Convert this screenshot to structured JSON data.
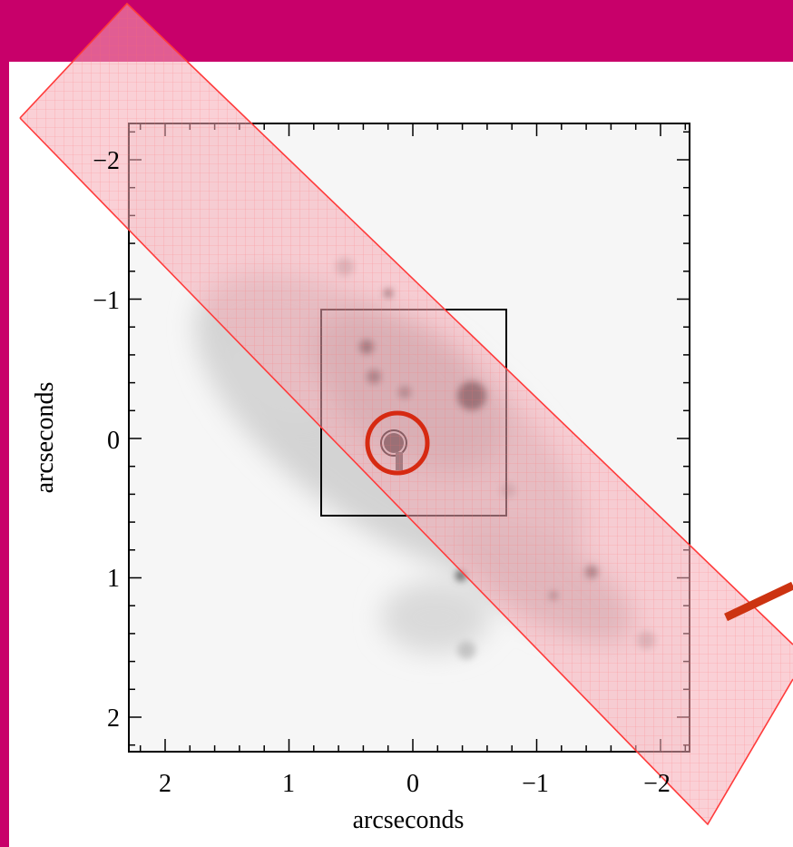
{
  "figure": {
    "x_axis": {
      "label": "arcseconds",
      "ticks": [
        "2",
        "1",
        "0",
        "−1",
        "−2"
      ]
    },
    "y_axis": {
      "label": "arcseconds",
      "ticks": [
        "−2",
        "−1",
        "0",
        "1",
        "2"
      ]
    },
    "colors": {
      "banner": "#c8006a",
      "panel": "#ffffff",
      "slit_fill": "#f7b7bf",
      "slit_edge": "#ff3b3b",
      "marker_circle": "#d62a12",
      "pointer": "#cc3311"
    },
    "icons": {
      "marker": "circle-marker-icon",
      "pointer": "arrow-pointer-icon"
    }
  }
}
